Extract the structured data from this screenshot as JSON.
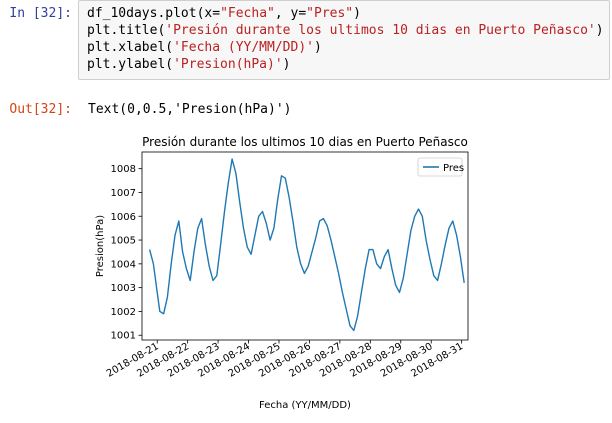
{
  "notebook": {
    "in_prompt": "In [32]:",
    "out_prompt": "Out[32]:",
    "code_lines": [
      [
        {
          "t": "name",
          "v": "df_10days.plot(x="
        },
        {
          "t": "str",
          "v": "\"Fecha\""
        },
        {
          "t": "name",
          "v": ", y="
        },
        {
          "t": "str",
          "v": "\"Pres\""
        },
        {
          "t": "name",
          "v": ")"
        }
      ],
      [
        {
          "t": "name",
          "v": "plt.title("
        },
        {
          "t": "str",
          "v": "'Presión durante los ultimos 10 dias en Puerto Peñasco'"
        },
        {
          "t": "name",
          "v": ")"
        }
      ],
      [
        {
          "t": "name",
          "v": "plt.xlabel("
        },
        {
          "t": "str",
          "v": "'Fecha (YY/MM/DD)'"
        },
        {
          "t": "name",
          "v": ")"
        }
      ],
      [
        {
          "t": "name",
          "v": "plt.ylabel("
        },
        {
          "t": "str",
          "v": "'Presion(hPa)'"
        },
        {
          "t": "name",
          "v": ")"
        }
      ]
    ],
    "output_text": "Text(0,0.5,'Presion(hPa)')"
  },
  "chart_data": {
    "type": "line",
    "title": "Presión durante los ultimos 10 dias en Puerto Peñasco",
    "xlabel": "Fecha (YY/MM/DD)",
    "ylabel": "Presion(hPa)",
    "x_ticks": [
      "2018-08-21",
      "2018-08-22",
      "2018-08-23",
      "2018-08-24",
      "2018-08-25",
      "2018-08-26",
      "2018-08-27",
      "2018-08-28",
      "2018-08-29",
      "2018-08-30",
      "2018-08-31"
    ],
    "y_ticks": [
      1001,
      1002,
      1003,
      1004,
      1005,
      1006,
      1007,
      1008
    ],
    "ylim": [
      1000.8,
      1008.7
    ],
    "xlim": [
      "2018-08-20T12:00",
      "2018-08-31T05:00"
    ],
    "legend": {
      "label": "Pres",
      "position": "top-right"
    },
    "series_color": "#1f77b4",
    "series": [
      {
        "name": "Pres",
        "x": [
          "2018-08-20T18:00",
          "2018-08-20T21:00",
          "2018-08-21T00:00",
          "2018-08-21T02:00",
          "2018-08-21T05:00",
          "2018-08-21T08:00",
          "2018-08-21T11:00",
          "2018-08-21T14:00",
          "2018-08-21T17:00",
          "2018-08-21T20:00",
          "2018-08-21T23:00",
          "2018-08-22T02:00",
          "2018-08-22T05:00",
          "2018-08-22T08:00",
          "2018-08-22T11:00",
          "2018-08-22T14:00",
          "2018-08-22T17:00",
          "2018-08-22T20:00",
          "2018-08-22T23:00",
          "2018-08-23T02:00",
          "2018-08-23T05:00",
          "2018-08-23T08:00",
          "2018-08-23T11:00",
          "2018-08-23T14:00",
          "2018-08-23T17:00",
          "2018-08-23T20:00",
          "2018-08-23T23:00",
          "2018-08-24T02:00",
          "2018-08-24T05:00",
          "2018-08-24T08:00",
          "2018-08-24T11:00",
          "2018-08-24T14:00",
          "2018-08-24T17:00",
          "2018-08-24T20:00",
          "2018-08-24T23:00",
          "2018-08-25T02:00",
          "2018-08-25T05:00",
          "2018-08-25T08:00",
          "2018-08-25T11:00",
          "2018-08-25T14:00",
          "2018-08-25T17:00",
          "2018-08-25T20:00",
          "2018-08-25T23:00",
          "2018-08-26T02:00",
          "2018-08-26T05:00",
          "2018-08-26T08:00",
          "2018-08-26T11:00",
          "2018-08-26T14:00",
          "2018-08-26T17:00",
          "2018-08-26T20:00",
          "2018-08-26T23:00",
          "2018-08-27T02:00",
          "2018-08-27T05:00",
          "2018-08-27T08:00",
          "2018-08-27T11:00",
          "2018-08-27T14:00",
          "2018-08-27T17:00",
          "2018-08-27T20:00",
          "2018-08-27T23:00",
          "2018-08-28T02:00",
          "2018-08-28T05:00",
          "2018-08-28T08:00",
          "2018-08-28T11:00",
          "2018-08-28T14:00",
          "2018-08-28T17:00",
          "2018-08-28T20:00",
          "2018-08-28T23:00",
          "2018-08-29T02:00",
          "2018-08-29T05:00",
          "2018-08-29T08:00",
          "2018-08-29T11:00",
          "2018-08-29T14:00",
          "2018-08-29T17:00",
          "2018-08-29T20:00",
          "2018-08-29T23:00",
          "2018-08-30T02:00",
          "2018-08-30T05:00",
          "2018-08-30T08:00",
          "2018-08-30T11:00",
          "2018-08-30T14:00",
          "2018-08-30T17:00",
          "2018-08-30T20:00",
          "2018-08-30T23:00",
          "2018-08-31T02:00"
        ],
        "values": [
          1004.6,
          1004.0,
          1002.8,
          1002.0,
          1001.9,
          1002.6,
          1004.0,
          1005.2,
          1005.8,
          1004.5,
          1003.8,
          1003.3,
          1004.5,
          1005.5,
          1005.9,
          1004.8,
          1003.9,
          1003.3,
          1003.5,
          1004.8,
          1006.2,
          1007.4,
          1008.4,
          1007.8,
          1006.6,
          1005.5,
          1004.7,
          1004.4,
          1005.2,
          1006.0,
          1006.2,
          1005.7,
          1005.0,
          1005.5,
          1006.7,
          1007.7,
          1007.6,
          1006.8,
          1005.8,
          1004.7,
          1004.0,
          1003.6,
          1003.9,
          1004.5,
          1005.1,
          1005.8,
          1005.9,
          1005.6,
          1005.0,
          1004.3,
          1003.6,
          1002.8,
          1002.1,
          1001.4,
          1001.2,
          1001.8,
          1002.8,
          1003.8,
          1004.6,
          1004.6,
          1004.0,
          1003.8,
          1004.3,
          1004.6,
          1003.8,
          1003.1,
          1002.8,
          1003.4,
          1004.4,
          1005.4,
          1006.0,
          1006.3,
          1006.0,
          1005.0,
          1004.2,
          1003.5,
          1003.3,
          1004.0,
          1004.8,
          1005.5,
          1005.8,
          1005.2,
          1004.3,
          1003.2
        ]
      }
    ]
  }
}
